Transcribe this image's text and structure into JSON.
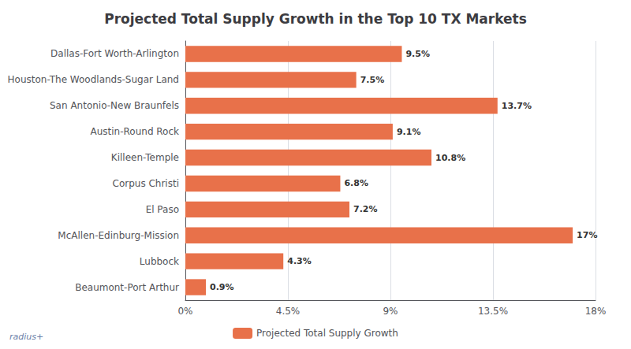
{
  "chart_data": {
    "type": "bar",
    "orientation": "horizontal",
    "title": "Projected Total Supply Growth in the Top 10 TX Markets",
    "categories": [
      "Dallas-Fort Worth-Arlington",
      "Houston-The Woodlands-Sugar Land",
      "San Antonio-New Braunfels",
      "Austin-Round Rock",
      "Killeen-Temple",
      "Corpus Christi",
      "El Paso",
      "McAllen-Edinburg-Mission",
      "Lubbock",
      "Beaumont-Port Arthur"
    ],
    "series": [
      {
        "name": "Projected Total Supply Growth",
        "color": "#E8714A",
        "values": [
          9.5,
          7.5,
          13.7,
          9.1,
          10.8,
          6.8,
          7.2,
          17.0,
          4.3,
          0.9
        ],
        "value_labels": [
          "9.5%",
          "7.5%",
          "13.7%",
          "9.1%",
          "10.8%",
          "6.8%",
          "7.2%",
          "17%",
          "4.3%",
          "0.9%"
        ]
      }
    ],
    "xlim": [
      0,
      18
    ],
    "xticks": [
      {
        "value": 0,
        "label": "0%"
      },
      {
        "value": 4.5,
        "label": "4.5%"
      },
      {
        "value": 9,
        "label": "9%"
      },
      {
        "value": 13.5,
        "label": "13.5%"
      },
      {
        "value": 18,
        "label": "18%"
      }
    ],
    "grid": true,
    "data_labels": true,
    "legend": "bottom",
    "annotation": "radius+"
  }
}
